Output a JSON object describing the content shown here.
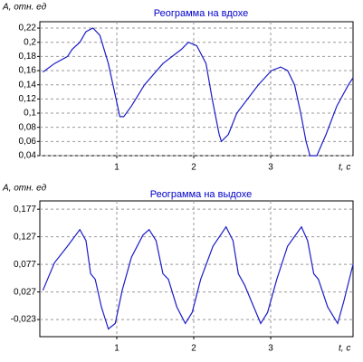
{
  "chart_data": [
    {
      "type": "line",
      "title": "Реограмма на вдохе",
      "y_label": "A, отн. ед",
      "x_label": "t, c",
      "xlim": [
        0,
        4.07
      ],
      "xticks": [
        1,
        2,
        3
      ],
      "ylim": [
        0.04,
        0.229
      ],
      "yticks": [
        {
          "value": 0.04,
          "label": "0,04"
        },
        {
          "value": 0.06,
          "label": "0,06"
        },
        {
          "value": 0.08,
          "label": "0,08"
        },
        {
          "value": 0.1,
          "label": "0,1"
        },
        {
          "value": 0.12,
          "label": "0,12"
        },
        {
          "value": 0.14,
          "label": "0,14"
        },
        {
          "value": 0.16,
          "label": "0,16"
        },
        {
          "value": 0.18,
          "label": "0,18"
        },
        {
          "value": 0.2,
          "label": "0,2"
        },
        {
          "value": 0.22,
          "label": "0,22"
        }
      ],
      "grid": true,
      "series": [
        {
          "color": "#1c1cc8",
          "x": [
            0.04,
            0.19,
            0.36,
            0.42,
            0.52,
            0.6,
            0.69,
            0.78,
            0.89,
            0.99,
            1.04,
            1.09,
            1.19,
            1.36,
            1.6,
            1.84,
            1.93,
            2.04,
            2.16,
            2.24,
            2.33,
            2.36,
            2.45,
            2.56,
            2.84,
            3.01,
            3.13,
            3.22,
            3.31,
            3.39,
            3.46,
            3.51,
            3.6,
            3.72,
            3.86,
            4.01,
            4.07
          ],
          "values": [
            0.158,
            0.17,
            0.18,
            0.19,
            0.2,
            0.215,
            0.22,
            0.21,
            0.17,
            0.12,
            0.095,
            0.095,
            0.11,
            0.14,
            0.17,
            0.19,
            0.2,
            0.195,
            0.17,
            0.12,
            0.07,
            0.06,
            0.07,
            0.1,
            0.14,
            0.16,
            0.165,
            0.16,
            0.14,
            0.1,
            0.06,
            0.04,
            0.04,
            0.07,
            0.11,
            0.14,
            0.15
          ]
        }
      ]
    },
    {
      "type": "line",
      "title": "Реограмма на выдохе",
      "y_label": "A, отн. ед",
      "x_label": "t, c",
      "xlim": [
        0,
        4.07
      ],
      "xticks": [
        1,
        2,
        3
      ],
      "ylim": [
        -0.054,
        0.192
      ],
      "yticks": [
        {
          "value": -0.023,
          "label": "-0,023"
        },
        {
          "value": 0.027,
          "label": "0,027"
        },
        {
          "value": 0.077,
          "label": "0,077"
        },
        {
          "value": 0.127,
          "label": "0,127"
        },
        {
          "value": 0.177,
          "label": "0,177"
        }
      ],
      "grid": true,
      "series": [
        {
          "color": "#1c1cc8",
          "x": [
            0.04,
            0.19,
            0.36,
            0.52,
            0.6,
            0.66,
            0.72,
            0.8,
            0.89,
            0.98,
            1.07,
            1.19,
            1.34,
            1.42,
            1.51,
            1.6,
            1.67,
            1.78,
            1.89,
            1.98,
            2.09,
            2.25,
            2.42,
            2.51,
            2.58,
            2.66,
            2.78,
            2.87,
            2.96,
            3.08,
            3.22,
            3.4,
            3.48,
            3.56,
            3.62,
            3.74,
            3.87,
            3.95,
            4.07
          ],
          "values": [
            0.03,
            0.08,
            0.11,
            0.14,
            0.12,
            0.06,
            0.05,
            0.0,
            -0.04,
            -0.03,
            0.03,
            0.09,
            0.13,
            0.14,
            0.12,
            0.06,
            0.05,
            0.0,
            -0.03,
            -0.01,
            0.05,
            0.11,
            0.145,
            0.12,
            0.06,
            0.04,
            0.0,
            -0.03,
            -0.01,
            0.05,
            0.11,
            0.145,
            0.12,
            0.06,
            0.05,
            0.0,
            -0.03,
            0.01,
            0.077
          ]
        }
      ]
    }
  ]
}
